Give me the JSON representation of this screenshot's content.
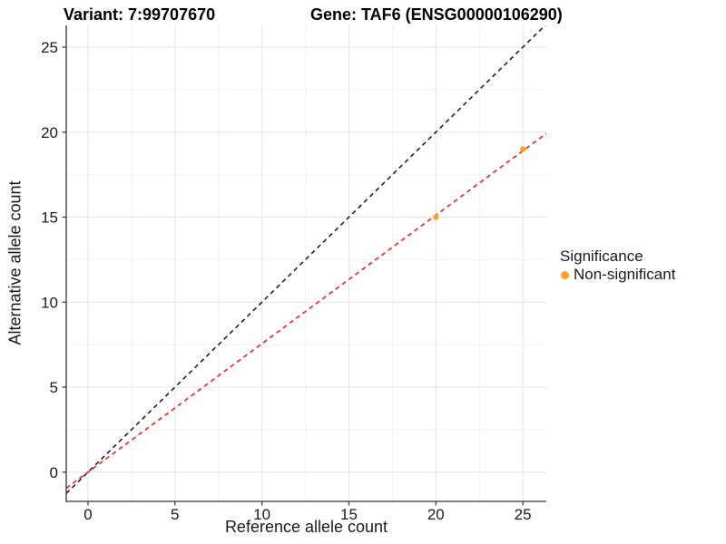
{
  "header": {
    "title_left": "Variant: 7:99707670",
    "title_right": "Gene: TAF6 (ENSG00000106290)"
  },
  "chart_data": {
    "type": "scatter",
    "xlabel": "Reference allele count",
    "ylabel": "Alternative allele count",
    "xlim": [
      -1.25,
      26.35
    ],
    "ylim": [
      -1.72,
      26.28
    ],
    "x_ticks": [
      0,
      5,
      10,
      15,
      20,
      25
    ],
    "y_ticks": [
      0,
      5,
      10,
      15,
      20,
      25
    ],
    "x_minor_ticks": [
      2.5,
      7.5,
      12.5,
      17.5,
      22.5
    ],
    "y_minor_ticks": [
      2.5,
      7.5,
      12.5,
      17.5,
      22.5
    ],
    "grid": true,
    "series": [
      {
        "name": "Non-significant",
        "color": "#FFA124",
        "points": [
          {
            "x": 20,
            "y": 15
          },
          {
            "x": 25,
            "y": 19
          }
        ]
      }
    ],
    "lines": [
      {
        "name": "identity",
        "slope": 1,
        "intercept": 0,
        "color": "#222222",
        "style": "dashed"
      },
      {
        "name": "regression",
        "slope": 0.756,
        "intercept": 0,
        "color": "#EE2222",
        "style": "dashed"
      }
    ],
    "legend": {
      "title": "Significance",
      "position": "right",
      "items": [
        {
          "label": "Non-significant",
          "color": "#FFA124"
        }
      ]
    }
  },
  "colors": {
    "grid_major": "#E4E4E4",
    "grid_minor": "#F2F2F2",
    "axis": "#333333",
    "tick_label": "#1a1a1a",
    "background": "#ffffff"
  }
}
